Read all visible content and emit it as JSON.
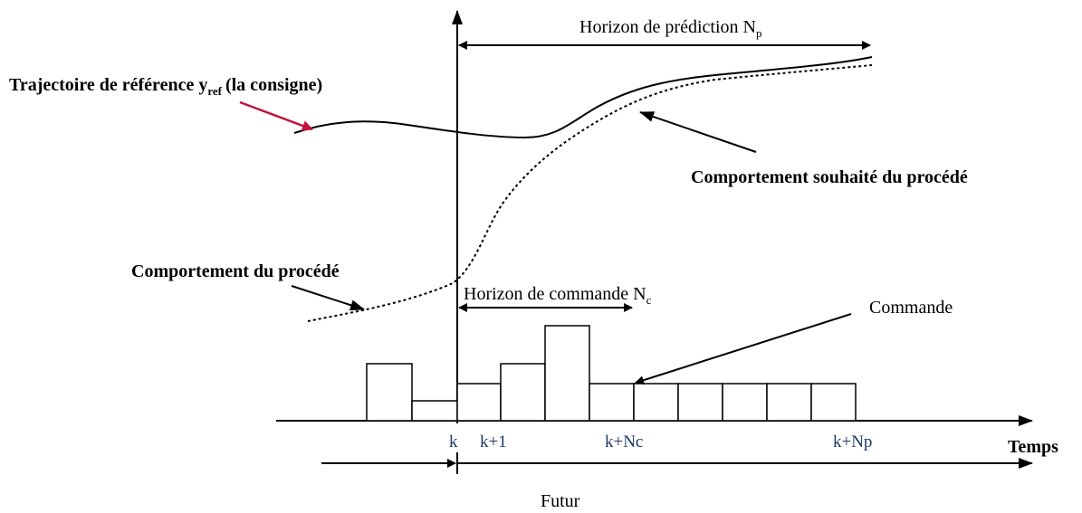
{
  "prediction_horizon": {
    "text": "Horizon de prédiction N",
    "sub": "p"
  },
  "reference": {
    "text": "Trajectoire de référence y",
    "sub": "ref",
    "after": "(la consigne)"
  },
  "desired_behaviour": "Comportement souhaité du procédé",
  "process_behaviour": "Comportement du procédé",
  "control_horizon": {
    "text": "Horizon de commande N",
    "sub": "c"
  },
  "control": "Commande",
  "ticks": [
    "k",
    "k+1",
    "k+Nc",
    "k+Np"
  ],
  "time_label": "Temps",
  "future_label": "Futur"
}
